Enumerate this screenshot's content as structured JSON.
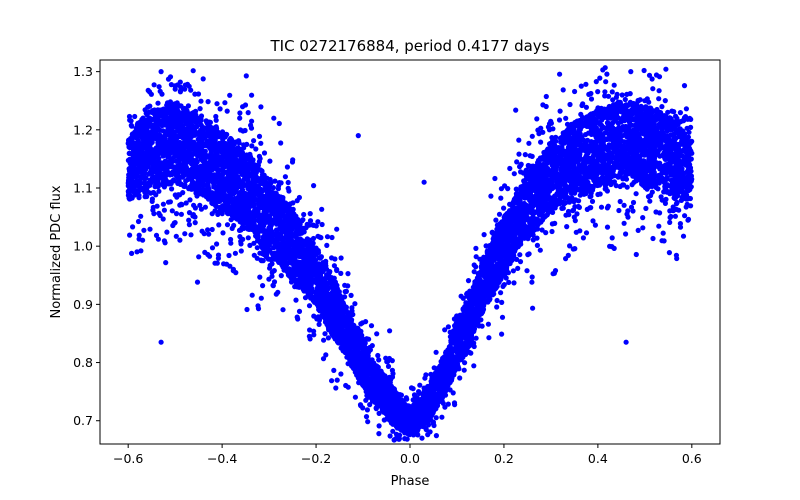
{
  "chart_data": {
    "type": "scatter",
    "title": "TIC 0272176884, period 0.4177 days",
    "xlabel": "Phase",
    "ylabel": "Normalized PDC flux",
    "xlim": [
      -0.66,
      0.66
    ],
    "ylim": [
      0.66,
      1.32
    ],
    "xticks": [
      -0.6,
      -0.4,
      -0.2,
      0.0,
      0.2,
      0.4,
      0.6
    ],
    "xtick_labels": [
      "−0.6",
      "−0.4",
      "−0.2",
      "0.0",
      "0.2",
      "0.4",
      "0.6"
    ],
    "yticks": [
      0.7,
      0.8,
      0.9,
      1.0,
      1.1,
      1.2,
      1.3
    ],
    "ytick_labels": [
      "0.7",
      "0.8",
      "0.9",
      "1.0",
      "1.1",
      "1.2",
      "1.3"
    ],
    "grid": false,
    "legend": "none",
    "marker_color": "#0000ff",
    "series": [
      {
        "x": [
          -0.6,
          -0.58,
          -0.56,
          -0.54,
          -0.52,
          -0.5,
          -0.48,
          -0.46,
          -0.44,
          -0.42,
          -0.4,
          -0.38,
          -0.36,
          -0.34,
          -0.32,
          -0.3,
          -0.28,
          -0.26,
          -0.24,
          -0.22,
          -0.2,
          -0.18,
          -0.16,
          -0.14,
          -0.12,
          -0.1,
          -0.08,
          -0.06,
          -0.04,
          -0.02,
          0.0,
          0.02,
          0.04,
          0.06,
          0.08,
          0.1,
          0.12,
          0.14,
          0.16,
          0.18,
          0.2,
          0.22,
          0.24,
          0.26,
          0.28,
          0.3,
          0.32,
          0.34,
          0.36,
          0.38,
          0.4,
          0.42,
          0.44,
          0.46,
          0.48,
          0.5,
          0.52,
          0.54,
          0.56,
          0.58,
          0.6,
          -0.53,
          -0.5,
          -0.29,
          -0.11,
          0.03,
          0.29,
          0.47,
          0.5,
          -0.53,
          0.46
        ],
        "y": [
          1.13,
          1.15,
          1.16,
          1.17,
          1.17,
          1.18,
          1.17,
          1.16,
          1.15,
          1.14,
          1.13,
          1.12,
          1.1,
          1.09,
          1.07,
          1.05,
          1.03,
          1.01,
          0.99,
          0.97,
          0.95,
          0.92,
          0.89,
          0.86,
          0.83,
          0.8,
          0.77,
          0.75,
          0.73,
          0.71,
          0.7,
          0.71,
          0.73,
          0.76,
          0.79,
          0.83,
          0.86,
          0.9,
          0.94,
          0.97,
          1.0,
          1.03,
          1.06,
          1.08,
          1.1,
          1.12,
          1.13,
          1.14,
          1.15,
          1.16,
          1.17,
          1.17,
          1.18,
          1.18,
          1.18,
          1.17,
          1.17,
          1.16,
          1.15,
          1.14,
          1.13,
          1.3,
          1.27,
          1.22,
          1.19,
          1.11,
          1.24,
          1.3,
          1.25,
          0.835,
          0.835
        ],
        "spread": [
          0.06,
          0.07,
          0.08,
          0.08,
          0.08,
          0.08,
          0.08,
          0.08,
          0.08,
          0.08,
          0.08,
          0.08,
          0.08,
          0.08,
          0.08,
          0.08,
          0.07,
          0.07,
          0.07,
          0.06,
          0.06,
          0.06,
          0.06,
          0.05,
          0.05,
          0.05,
          0.04,
          0.04,
          0.04,
          0.03,
          0.03,
          0.03,
          0.04,
          0.04,
          0.04,
          0.05,
          0.05,
          0.05,
          0.05,
          0.06,
          0.06,
          0.06,
          0.06,
          0.07,
          0.07,
          0.07,
          0.07,
          0.08,
          0.08,
          0.08,
          0.08,
          0.08,
          0.08,
          0.08,
          0.08,
          0.08,
          0.08,
          0.08,
          0.08,
          0.07,
          0.06,
          0.0,
          0.0,
          0.0,
          0.0,
          0.0,
          0.0,
          0.0,
          0.0,
          0.0,
          0.0
        ]
      }
    ]
  }
}
